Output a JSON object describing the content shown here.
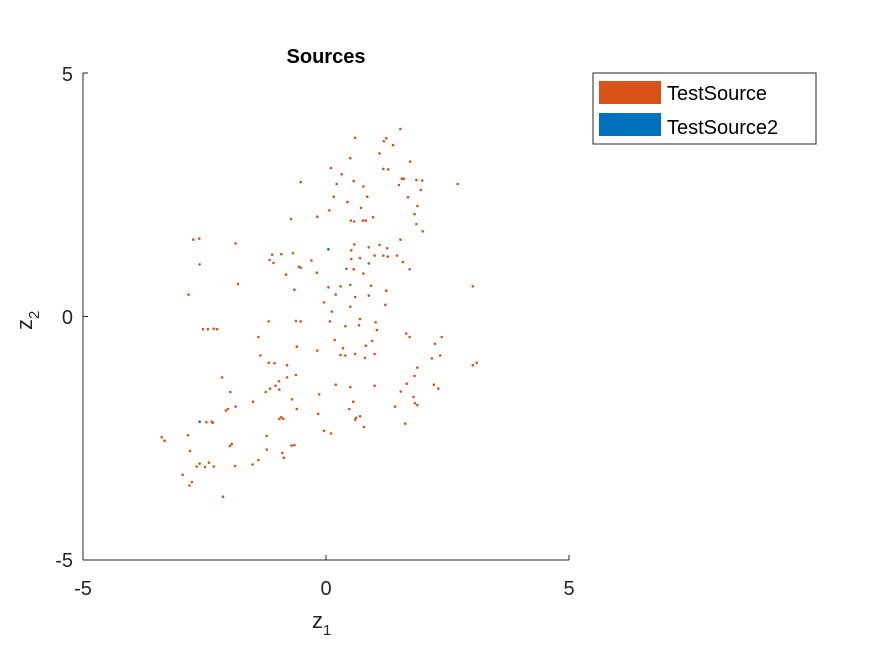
{
  "chart_data": {
    "type": "scatter",
    "title": "Sources",
    "xlabel": {
      "main": "z",
      "sub": "1"
    },
    "ylabel": {
      "main": "z",
      "sub": "2"
    },
    "xlim": [
      -5,
      5
    ],
    "ylim": [
      -5,
      5
    ],
    "xticks": [
      "-5",
      "0",
      "5"
    ],
    "yticks": [
      "-5",
      "0",
      "5"
    ],
    "grid": false,
    "legend_position": "outside-top-right",
    "series": [
      {
        "name": "TestSource",
        "color": "#D95319",
        "points": [
          [
            1.53,
            3.85
          ],
          [
            1.24,
            3.66
          ],
          [
            1.19,
            3.6
          ],
          [
            0.6,
            3.67
          ],
          [
            1.38,
            3.52
          ],
          [
            1.1,
            3.35
          ],
          [
            0.5,
            3.25
          ],
          [
            1.73,
            3.18
          ],
          [
            0.1,
            3.05
          ],
          [
            1.18,
            3.03
          ],
          [
            1.28,
            3.02
          ],
          [
            0.32,
            2.92
          ],
          [
            1.56,
            2.83
          ],
          [
            1.6,
            2.83
          ],
          [
            1.86,
            2.8
          ],
          [
            1.98,
            2.79
          ],
          [
            0.57,
            2.78
          ],
          [
            1.5,
            2.7
          ],
          [
            2.71,
            2.72
          ],
          [
            -0.52,
            2.76
          ],
          [
            0.22,
            2.72
          ],
          [
            0.77,
            2.67
          ],
          [
            1.95,
            2.6
          ],
          [
            0.85,
            2.46
          ],
          [
            0.16,
            2.46
          ],
          [
            1.69,
            2.45
          ],
          [
            0.44,
            2.35
          ],
          [
            1.88,
            2.27
          ],
          [
            0.72,
            2.23
          ],
          [
            0.07,
            2.18
          ],
          [
            -0.18,
            2.05
          ],
          [
            0.97,
            2.04
          ],
          [
            1.82,
            2.1
          ],
          [
            -0.72,
            2.0
          ],
          [
            0.51,
            1.97
          ],
          [
            0.76,
            1.97
          ],
          [
            0.82,
            1.97
          ],
          [
            0.58,
            1.95
          ],
          [
            1.86,
            1.9
          ],
          [
            1.99,
            1.75
          ],
          [
            -2.61,
            1.6
          ],
          [
            -2.73,
            1.58
          ],
          [
            1.53,
            1.58
          ],
          [
            -1.86,
            1.5
          ],
          [
            0.58,
            1.48
          ],
          [
            1.1,
            1.47
          ],
          [
            1.26,
            1.4
          ],
          [
            0.88,
            1.42
          ],
          [
            0.52,
            1.36
          ],
          [
            -0.68,
            1.3
          ],
          [
            -0.92,
            1.28
          ],
          [
            -1.11,
            1.27
          ],
          [
            1.0,
            1.25
          ],
          [
            1.18,
            1.25
          ],
          [
            1.27,
            1.23
          ],
          [
            1.46,
            1.25
          ],
          [
            0.7,
            1.2
          ],
          [
            0.52,
            1.18
          ],
          [
            -0.3,
            1.15
          ],
          [
            -1.16,
            1.16
          ],
          [
            -1.08,
            1.1
          ],
          [
            1.58,
            1.12
          ],
          [
            -2.6,
            1.07
          ],
          [
            0.88,
            1.09
          ],
          [
            -0.56,
            1.02
          ],
          [
            -0.52,
            1.0
          ],
          [
            0.42,
            0.98
          ],
          [
            0.57,
            0.97
          ],
          [
            1.72,
            0.97
          ],
          [
            -0.19,
            0.9
          ],
          [
            0.77,
            0.88
          ],
          [
            -0.82,
            0.86
          ],
          [
            -1.81,
            0.67
          ],
          [
            0.5,
            0.65
          ],
          [
            0.3,
            0.62
          ],
          [
            0.05,
            0.6
          ],
          [
            0.93,
            0.63
          ],
          [
            3.02,
            0.62
          ],
          [
            -0.65,
            0.55
          ],
          [
            -2.83,
            0.45
          ],
          [
            1.24,
            0.53
          ],
          [
            0.2,
            0.45
          ],
          [
            0.6,
            0.4
          ],
          [
            0.88,
            0.43
          ],
          [
            -0.04,
            0.29
          ],
          [
            1.22,
            0.24
          ],
          [
            0.5,
            0.2
          ],
          [
            0.12,
            0.1
          ],
          [
            -0.62,
            -0.09
          ],
          [
            -1.18,
            -0.1
          ],
          [
            -0.52,
            -0.1
          ],
          [
            0.08,
            -0.1
          ],
          [
            0.7,
            -0.05
          ],
          [
            1.02,
            -0.12
          ],
          [
            -2.53,
            -0.26
          ],
          [
            -2.31,
            -0.25
          ],
          [
            -2.43,
            -0.26
          ],
          [
            -2.24,
            -0.26
          ],
          [
            0.4,
            -0.2
          ],
          [
            0.68,
            -0.18
          ],
          [
            1.05,
            -0.28
          ],
          [
            1.65,
            -0.35
          ],
          [
            1.72,
            -0.42
          ],
          [
            2.38,
            -0.42
          ],
          [
            -1.39,
            -0.42
          ],
          [
            2.24,
            -0.56
          ],
          [
            0.18,
            -0.48
          ],
          [
            0.95,
            -0.5
          ],
          [
            0.82,
            -0.6
          ],
          [
            -0.6,
            -0.62
          ],
          [
            0.35,
            -0.65
          ],
          [
            -0.18,
            -0.7
          ],
          [
            0.3,
            -0.79
          ],
          [
            0.6,
            -0.77
          ],
          [
            1.0,
            -0.77
          ],
          [
            -1.35,
            -0.8
          ],
          [
            0.4,
            -0.8
          ],
          [
            2.35,
            -0.8
          ],
          [
            0.8,
            -0.85
          ],
          [
            2.18,
            -0.86
          ],
          [
            -1.18,
            -0.95
          ],
          [
            -1.06,
            -0.96
          ],
          [
            -0.8,
            -1.0
          ],
          [
            3.02,
            -1.0
          ],
          [
            3.1,
            -0.95
          ],
          [
            1.88,
            -1.05
          ],
          [
            -0.62,
            -1.2
          ],
          [
            1.82,
            -1.22
          ],
          [
            -0.8,
            -1.25
          ],
          [
            -2.14,
            -1.25
          ],
          [
            -0.97,
            -1.33
          ],
          [
            1.66,
            -1.38
          ],
          [
            -1.04,
            -1.42
          ],
          [
            2.22,
            -1.4
          ],
          [
            -1.15,
            -1.48
          ],
          [
            1.0,
            -1.42
          ],
          [
            0.2,
            -1.4
          ],
          [
            0.5,
            -1.45
          ],
          [
            2.31,
            -1.48
          ],
          [
            -0.96,
            -1.5
          ],
          [
            1.54,
            -1.54
          ],
          [
            -1.97,
            -1.55
          ],
          [
            -1.24,
            -1.55
          ],
          [
            -0.14,
            -1.6
          ],
          [
            1.8,
            -1.65
          ],
          [
            -1.5,
            -1.75
          ],
          [
            0.56,
            -1.75
          ],
          [
            -0.7,
            -1.7
          ],
          [
            -1.86,
            -1.85
          ],
          [
            -2.02,
            -1.9
          ],
          [
            1.83,
            -1.78
          ],
          [
            1.88,
            -1.82
          ],
          [
            1.42,
            -1.85
          ],
          [
            -2.06,
            -1.93
          ],
          [
            -0.6,
            -1.9
          ],
          [
            0.48,
            -1.9
          ],
          [
            -0.16,
            -2.0
          ],
          [
            -0.92,
            -2.07
          ],
          [
            -0.88,
            -2.1
          ],
          [
            0.7,
            -2.05
          ],
          [
            0.62,
            -2.08
          ],
          [
            -0.96,
            -2.1
          ],
          [
            -2.35,
            -2.16
          ],
          [
            0.6,
            -2.12
          ],
          [
            -2.33,
            -2.18
          ],
          [
            -2.46,
            -2.17
          ],
          [
            1.63,
            -2.2
          ],
          [
            0.78,
            -2.27
          ],
          [
            -0.04,
            -2.35
          ],
          [
            0.1,
            -2.4
          ],
          [
            -3.38,
            -2.48
          ],
          [
            -1.22,
            -2.45
          ],
          [
            -2.84,
            -2.44
          ],
          [
            -3.32,
            -2.55
          ],
          [
            -1.94,
            -2.62
          ],
          [
            -0.71,
            -2.65
          ],
          [
            -1.98,
            -2.66
          ],
          [
            -0.65,
            -2.64
          ],
          [
            -1.22,
            -2.73
          ],
          [
            -0.9,
            -2.8
          ],
          [
            -2.8,
            -2.76
          ],
          [
            -0.87,
            -2.9
          ],
          [
            -1.39,
            -2.95
          ],
          [
            -2.6,
            -3.02
          ],
          [
            -2.41,
            -3.0
          ],
          [
            -2.31,
            -3.08
          ],
          [
            -2.66,
            -3.08
          ],
          [
            -2.49,
            -3.09
          ],
          [
            -1.51,
            -3.04
          ],
          [
            -1.87,
            -3.07
          ],
          [
            -2.95,
            -3.25
          ],
          [
            -2.81,
            -3.47
          ],
          [
            -2.76,
            -3.4
          ],
          [
            -2.12,
            -3.7
          ]
        ]
      },
      {
        "name": "TestSource2",
        "color": "#0072BD",
        "points": [
          [
            0.05,
            1.38
          ],
          [
            -2.6,
            -2.16
          ]
        ]
      }
    ]
  }
}
